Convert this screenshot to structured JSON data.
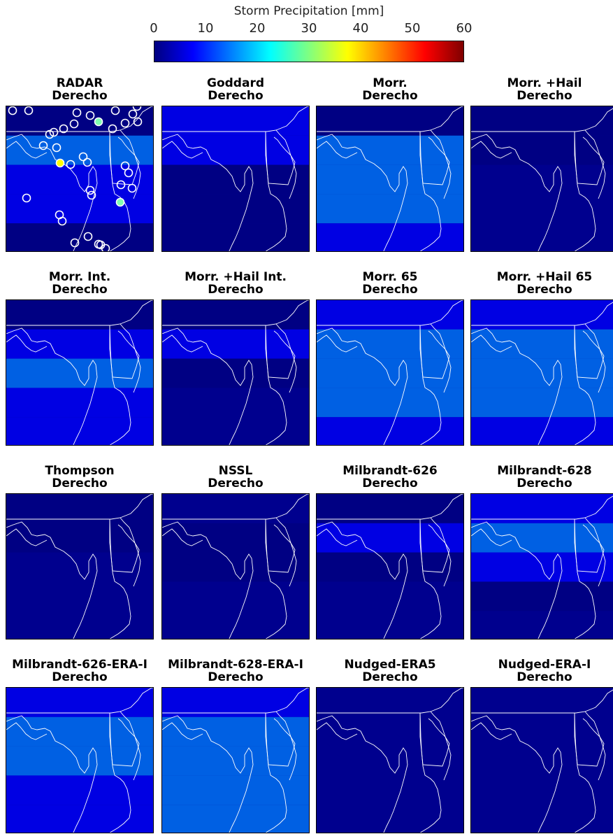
{
  "colorbar": {
    "label": "Storm Precipitation [mm]",
    "ticks": [
      "0",
      "10",
      "20",
      "30",
      "40",
      "50",
      "60"
    ],
    "min": 0,
    "max": 60,
    "colormap": "jet",
    "colors": [
      "#00007f",
      "#0000ff",
      "#0080ff",
      "#00ffff",
      "#80ff80",
      "#ffff00",
      "#ff8000",
      "#ff0000",
      "#7f0000"
    ]
  },
  "chart_data": {
    "type": "heatmap",
    "variable": "Storm Precipitation [mm]",
    "vmin": 0,
    "vmax": 60,
    "panels": [
      {
        "name": "RADAR",
        "event": "Derecho",
        "has_gauges": true,
        "intensity": [
          0.05,
          0.2,
          0.15,
          0.1,
          0.05
        ]
      },
      {
        "name": "Goddard",
        "event": "Derecho",
        "has_gauges": false,
        "intensity": [
          0.1,
          0.12,
          0.04,
          0.02,
          0.01
        ]
      },
      {
        "name": "Morr.",
        "event": "Derecho",
        "has_gauges": false,
        "intensity": [
          0.05,
          0.2,
          0.22,
          0.2,
          0.12
        ]
      },
      {
        "name": "Morr. +Hail",
        "event": "Derecho",
        "has_gauges": false,
        "intensity": [
          0.02,
          0.02,
          0.0,
          0.0,
          0.0
        ]
      },
      {
        "name": "Morr. Int.",
        "event": "Derecho",
        "has_gauges": false,
        "intensity": [
          0.05,
          0.15,
          0.2,
          0.18,
          0.1
        ]
      },
      {
        "name": "Morr. +Hail Int.",
        "event": "Derecho",
        "has_gauges": false,
        "intensity": [
          0.04,
          0.1,
          0.03,
          0.0,
          0.0
        ]
      },
      {
        "name": "Morr. 65",
        "event": "Derecho",
        "has_gauges": false,
        "intensity": [
          0.1,
          0.25,
          0.3,
          0.22,
          0.12
        ]
      },
      {
        "name": "Morr. +Hail 65",
        "event": "Derecho",
        "has_gauges": false,
        "intensity": [
          0.1,
          0.25,
          0.3,
          0.2,
          0.1
        ]
      },
      {
        "name": "Thompson",
        "event": "Derecho",
        "has_gauges": false,
        "intensity": [
          0.02,
          0.02,
          0.0,
          0.0,
          0.0
        ]
      },
      {
        "name": "NSSL",
        "event": "Derecho",
        "has_gauges": false,
        "intensity": [
          0.0,
          0.02,
          0.04,
          0.0,
          0.0
        ]
      },
      {
        "name": "Milbrandt-626",
        "event": "Derecho",
        "has_gauges": false,
        "intensity": [
          0.05,
          0.08,
          0.04,
          0.0,
          0.0
        ]
      },
      {
        "name": "Milbrandt-628",
        "event": "Derecho",
        "has_gauges": false,
        "intensity": [
          0.1,
          0.2,
          0.18,
          0.06,
          0.0
        ]
      },
      {
        "name": "Milbrandt-626-ERA-I",
        "event": "Derecho",
        "has_gauges": false,
        "intensity": [
          0.15,
          0.25,
          0.2,
          0.15,
          0.1
        ]
      },
      {
        "name": "Milbrandt-628-ERA-I",
        "event": "Derecho",
        "has_gauges": false,
        "intensity": [
          0.15,
          0.25,
          0.25,
          0.2,
          0.2
        ]
      },
      {
        "name": "Nudged-ERA5",
        "event": "Derecho",
        "has_gauges": false,
        "intensity": [
          0.0,
          0.0,
          0.0,
          0.0,
          0.0
        ]
      },
      {
        "name": "Nudged-ERA-I",
        "event": "Derecho",
        "has_gauges": false,
        "intensity": [
          0.0,
          0.0,
          0.0,
          0.0,
          0.0
        ]
      }
    ]
  }
}
